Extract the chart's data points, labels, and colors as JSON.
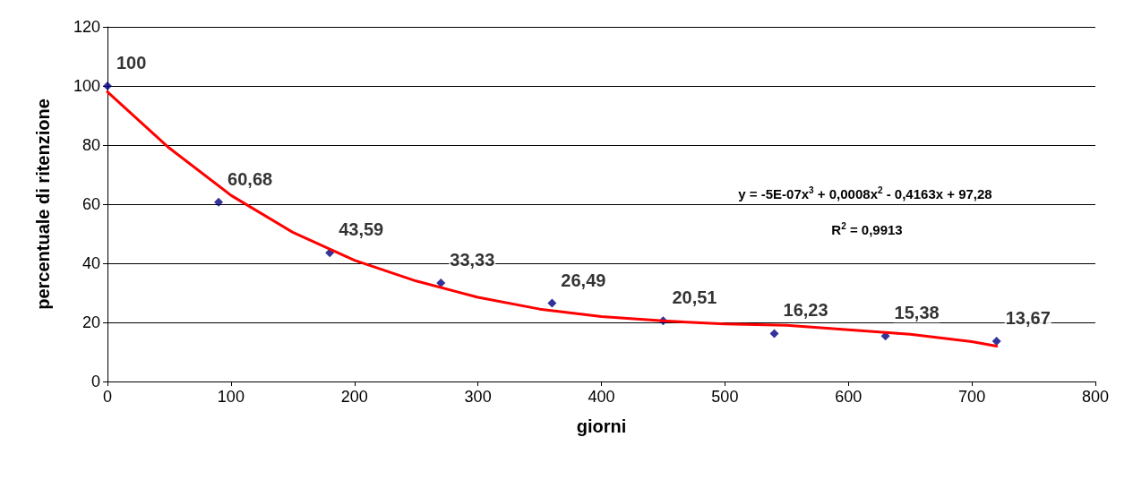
{
  "chart_data": {
    "type": "scatter",
    "xlabel": "giorni",
    "ylabel": "percentuale di ritenzione",
    "x": [
      0,
      90,
      180,
      270,
      360,
      450,
      540,
      630,
      720
    ],
    "series": [
      {
        "color": "#000080",
        "values": [
          100,
          60.68,
          43.59,
          33.33,
          26.49,
          20.51,
          16.23,
          15.38,
          13.67
        ],
        "marker": "diamond",
        "value_labels": [
          "100",
          "60,68",
          "43,59",
          "33,33",
          "26,49",
          "20,51",
          "16,23",
          "15,38",
          "13,67"
        ]
      },
      {
        "type": "line",
        "color": "#ff0000",
        "marker": "none",
        "line_style": "solid",
        "x": [
          0,
          50,
          100,
          150,
          200,
          250,
          300,
          350,
          400,
          450,
          500,
          550,
          600,
          650,
          700,
          720
        ],
        "values": [
          98,
          79,
          63,
          50.5,
          41,
          34,
          28.5,
          24.5,
          22,
          20.5,
          19.5,
          19,
          17.5,
          16,
          13.5,
          12
        ]
      }
    ],
    "annotations": [
      "y = -5E-07x$^{3}$ + 0,0008x$^{2}$ - 0,4163x + 97,28",
      "R$^{2}$ = 0,9913"
    ],
    "xlim": [
      0,
      800
    ],
    "xticks": [
      0,
      100,
      200,
      300,
      400,
      500,
      600,
      700,
      800
    ],
    "ylim": [
      0,
      120
    ],
    "yticks": [
      0,
      20,
      40,
      60,
      80,
      100,
      120
    ],
    "grid": "y"
  }
}
